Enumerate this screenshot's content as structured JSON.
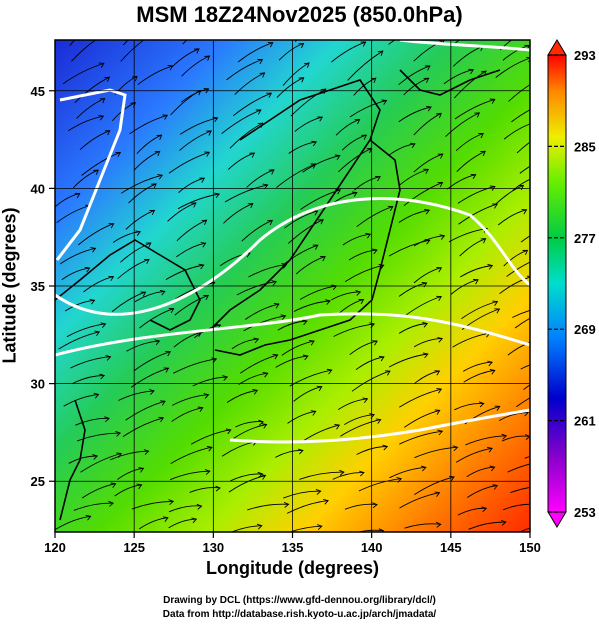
{
  "title": "MSM 18Z24Nov2025 (850.0hPa)",
  "chart_data": {
    "type": "heatmap",
    "title": "MSM 18Z24Nov2025 (850.0hPa)",
    "xlabel": "Longitude (degrees)",
    "ylabel": "Latitude  (degrees)",
    "xlim": [
      120,
      150
    ],
    "ylim": [
      22.4,
      47.6
    ],
    "x_ticks": [
      120,
      125,
      130,
      135,
      140,
      145,
      150
    ],
    "y_ticks": [
      25,
      30,
      35,
      40,
      45
    ],
    "grid": true,
    "colorbar": {
      "ticks": [
        253,
        261,
        269,
        277,
        285,
        293
      ],
      "range": [
        253,
        293
      ],
      "colors": [
        "#ff00ff",
        "#0000cc",
        "#0066ff",
        "#00ccff",
        "#00cc66",
        "#33cc00",
        "#ccff00",
        "#ffcc00",
        "#ff6600",
        "#ff0000"
      ]
    },
    "white_contours_k": [
      273,
      283
    ]
  },
  "credits": {
    "line1": "Drawing by DCL (https://www.gfd-dennou.org/library/dcl/)",
    "line2": "Data from http://database.rish.kyoto-u.ac.jp/arch/jmadata/"
  }
}
